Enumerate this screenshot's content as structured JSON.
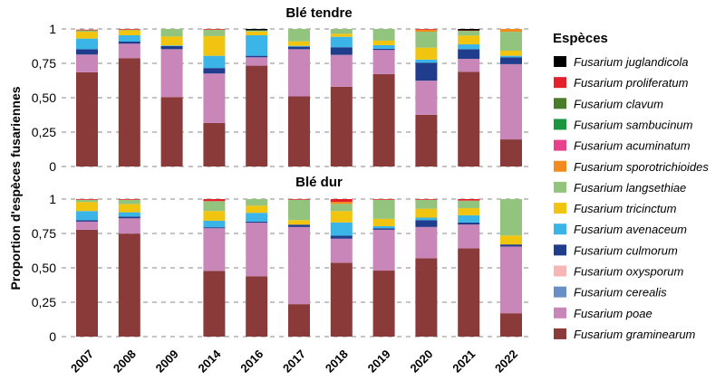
{
  "chart_data": {
    "type": "bar",
    "stacked": true,
    "ylabel": "Proportion d'espèces fusariennes",
    "ylim": [
      0,
      1
    ],
    "yticks": [
      "0",
      "0,25",
      "0,50",
      "0,75",
      "1"
    ],
    "grid": "horizontal dashed",
    "categories": [
      "2007",
      "2008",
      "2009",
      "2014",
      "2016",
      "2017",
      "2018",
      "2019",
      "2020",
      "2021",
      "2022"
    ],
    "legend": {
      "title": "Espèces",
      "placement": "right"
    },
    "species": [
      {
        "name": "Fusarium juglandicola",
        "color": "#000000"
      },
      {
        "name": "Fusarium proliferatum",
        "color": "#e5202a"
      },
      {
        "name": "Fusarium clavum",
        "color": "#4a7c2a"
      },
      {
        "name": "Fusarium sambucinum",
        "color": "#1a9641"
      },
      {
        "name": "Fusarium acuminatum",
        "color": "#e8408a"
      },
      {
        "name": "Fusarium sporotrichioides",
        "color": "#f28a1e"
      },
      {
        "name": "Fusarium langsethiae",
        "color": "#93c47d"
      },
      {
        "name": "Fusarium tricinctum",
        "color": "#f1c40f"
      },
      {
        "name": "Fusarium avenaceum",
        "color": "#3bb4e8"
      },
      {
        "name": "Fusarium culmorum",
        "color": "#1f3d8c"
      },
      {
        "name": "Fusarium oxysporum",
        "color": "#f6b6b6"
      },
      {
        "name": "Fusarium cerealis",
        "color": "#6a8fc7"
      },
      {
        "name": "Fusarium poae",
        "color": "#c986b9"
      },
      {
        "name": "Fusarium graminearum",
        "color": "#8b3a3a"
      }
    ],
    "panels": [
      {
        "title": "Blé tendre",
        "series": {
          "Fusarium graminearum": [
            0.685,
            0.788,
            0.505,
            0.317,
            0.733,
            0.51,
            0.58,
            0.672,
            0.376,
            0.689,
            0.197
          ],
          "Fusarium poae": [
            0.129,
            0.105,
            0.348,
            0.359,
            0.061,
            0.343,
            0.232,
            0.175,
            0.248,
            0.094,
            0.547
          ],
          "Fusarium cerealis": [
            0,
            0,
            0,
            0,
            0,
            0,
            0,
            0,
            0,
            0,
            0
          ],
          "Fusarium oxysporum": [
            0,
            0,
            0,
            0,
            0,
            0,
            0,
            0,
            0,
            0,
            0
          ],
          "Fusarium culmorum": [
            0.039,
            0.015,
            0.022,
            0.04,
            0.011,
            0.018,
            0.055,
            0.009,
            0.131,
            0.07,
            0.05
          ],
          "Fusarium avenaceum": [
            0.077,
            0.046,
            0.005,
            0.089,
            0.149,
            0.006,
            0.076,
            0.026,
            0.022,
            0.035,
            0.011
          ],
          "Fusarium tricinctum": [
            0.05,
            0.036,
            0.065,
            0.143,
            0.028,
            0.033,
            0.022,
            0.033,
            0.087,
            0.064,
            0.037
          ],
          "Fusarium langsethiae": [
            0.01,
            0.005,
            0.055,
            0.047,
            0.008,
            0.09,
            0.035,
            0.085,
            0.116,
            0.035,
            0.138
          ],
          "Fusarium sporotrichioides": [
            0,
            0,
            0,
            0,
            0,
            0,
            0,
            0,
            0.015,
            0,
            0.02
          ],
          "Fusarium acuminatum": [
            0,
            0,
            0,
            0,
            0,
            0,
            0,
            0,
            0,
            0,
            0
          ],
          "Fusarium sambucinum": [
            0,
            0,
            0,
            0,
            0,
            0,
            0,
            0,
            0,
            0,
            0
          ],
          "Fusarium clavum": [
            0,
            0,
            0,
            0,
            0,
            0,
            0,
            0,
            0,
            0,
            0
          ],
          "Fusarium proliferatum": [
            0.005,
            0.005,
            0,
            0.005,
            0,
            0,
            0,
            0,
            0.005,
            0.003,
            0
          ],
          "Fusarium juglandicola": [
            0,
            0,
            0,
            0,
            0.01,
            0,
            0,
            0,
            0,
            0.01,
            0
          ]
        }
      },
      {
        "title": "Blé dur",
        "series": {
          "Fusarium graminearum": [
            0.777,
            0.749,
            null,
            0.478,
            0.439,
            0.236,
            0.537,
            0.48,
            0.57,
            0.642,
            0.17
          ],
          "Fusarium poae": [
            0.059,
            0.111,
            null,
            0.31,
            0.389,
            0.561,
            0.175,
            0.297,
            0.227,
            0.173,
            0.485
          ],
          "Fusarium cerealis": [
            0,
            0,
            null,
            0,
            0,
            0,
            0,
            0,
            0,
            0,
            0
          ],
          "Fusarium oxysporum": [
            0,
            0,
            null,
            0,
            0,
            0,
            0,
            0,
            0,
            0,
            0
          ],
          "Fusarium culmorum": [
            0.011,
            0.013,
            null,
            0.007,
            0.008,
            0.017,
            0.022,
            0.011,
            0.05,
            0.015,
            0.015
          ],
          "Fusarium avenaceum": [
            0.066,
            0.031,
            null,
            0.048,
            0.064,
            0,
            0.096,
            0.015,
            0.018,
            0.052,
            0
          ],
          "Fusarium tricinctum": [
            0.065,
            0.059,
            null,
            0.07,
            0.052,
            0.033,
            0.083,
            0.053,
            0.065,
            0.052,
            0.065
          ],
          "Fusarium langsethiae": [
            0.017,
            0.032,
            null,
            0.072,
            0.048,
            0.148,
            0.052,
            0.139,
            0.065,
            0.055,
            0.265
          ],
          "Fusarium sporotrichioides": [
            0,
            0,
            null,
            0,
            0,
            0,
            0.015,
            0,
            0,
            0,
            0
          ],
          "Fusarium acuminatum": [
            0,
            0,
            null,
            0,
            0,
            0,
            0,
            0,
            0,
            0,
            0
          ],
          "Fusarium sambucinum": [
            0,
            0,
            null,
            0,
            0,
            0,
            0,
            0,
            0,
            0,
            0
          ],
          "Fusarium clavum": [
            0,
            0,
            null,
            0,
            0,
            0,
            0,
            0,
            0,
            0,
            0
          ],
          "Fusarium proliferatum": [
            0.005,
            0.005,
            null,
            0.015,
            0,
            0.005,
            0.02,
            0.005,
            0.005,
            0.011,
            0
          ],
          "Fusarium juglandicola": [
            0,
            0,
            null,
            0,
            0,
            0,
            0,
            0,
            0,
            0,
            0
          ]
        }
      }
    ]
  }
}
